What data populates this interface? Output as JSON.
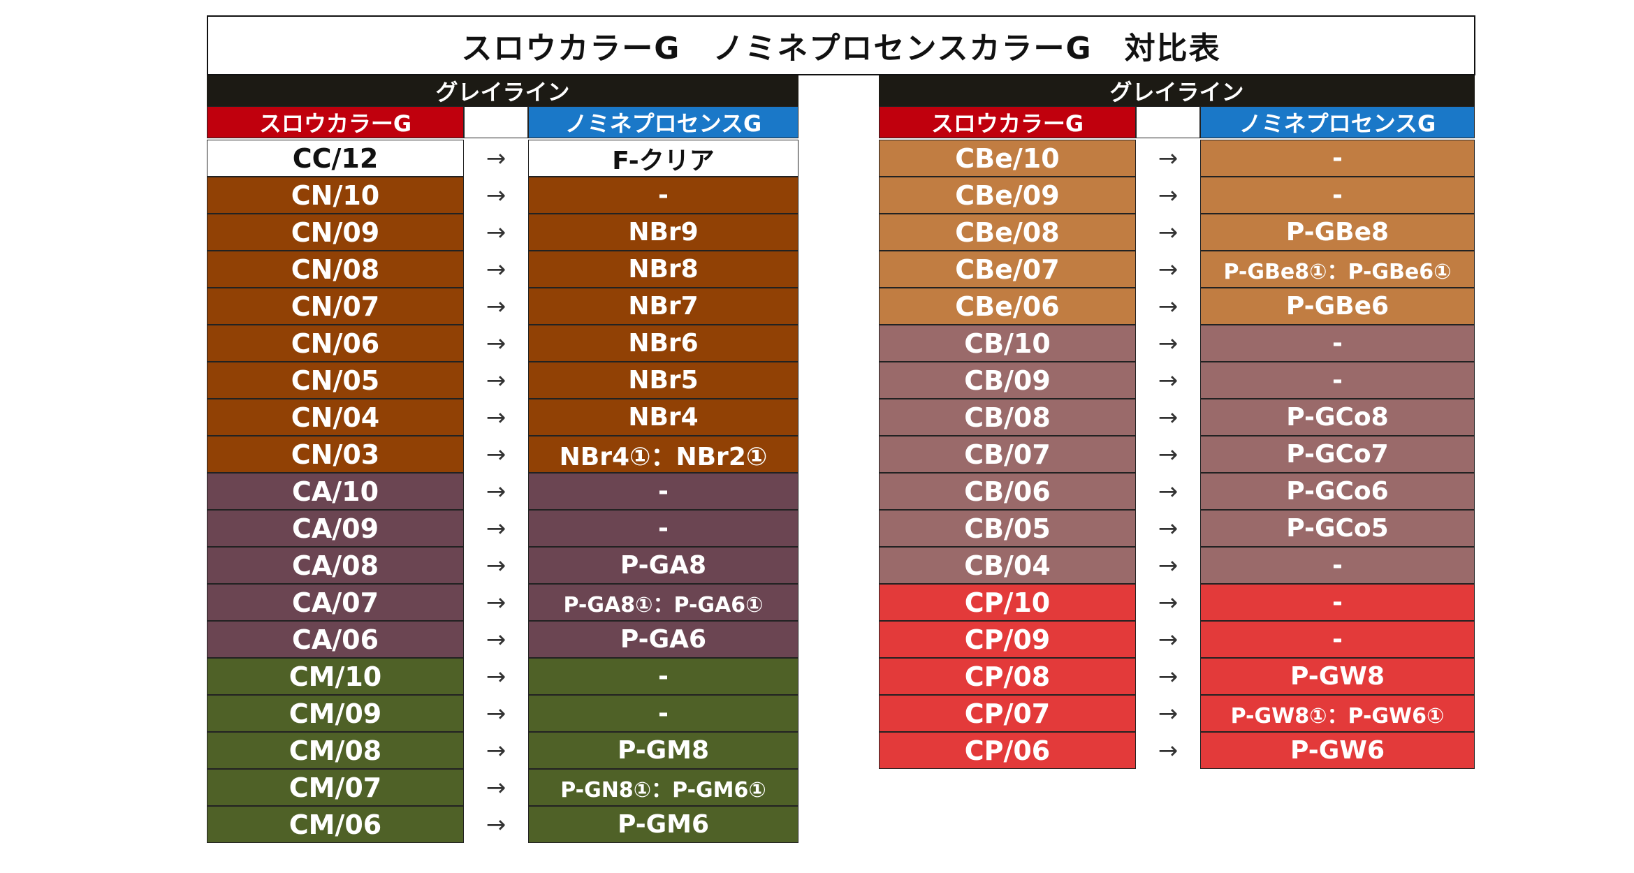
{
  "title": "スロウカラーG　ノミネプロセンスカラーG　対比表",
  "arrow": "→",
  "left": {
    "group_label": "グレイライン",
    "col_slow": "スロウカラーG",
    "col_nomi": "ノミネプロセンスG",
    "rows": [
      {
        "slow": "CC/12",
        "nomi": "F-クリア",
        "bg": "#ffffff",
        "fg": "#111111"
      },
      {
        "slow": "CN/10",
        "nomi": "-",
        "bg": "#914105",
        "fg": "#ffffff"
      },
      {
        "slow": "CN/09",
        "nomi": "NBr9",
        "bg": "#914105",
        "fg": "#ffffff"
      },
      {
        "slow": "CN/08",
        "nomi": "NBr8",
        "bg": "#914105",
        "fg": "#ffffff"
      },
      {
        "slow": "CN/07",
        "nomi": "NBr7",
        "bg": "#914105",
        "fg": "#ffffff"
      },
      {
        "slow": "CN/06",
        "nomi": "NBr6",
        "bg": "#914105",
        "fg": "#ffffff"
      },
      {
        "slow": "CN/05",
        "nomi": "NBr5",
        "bg": "#914105",
        "fg": "#ffffff"
      },
      {
        "slow": "CN/04",
        "nomi": "NBr4",
        "bg": "#914105",
        "fg": "#ffffff"
      },
      {
        "slow": "CN/03",
        "nomi": "NBr4①：NBr2①",
        "bg": "#914105",
        "fg": "#ffffff"
      },
      {
        "slow": "CA/10",
        "nomi": "-",
        "bg": "#6b4552",
        "fg": "#ffffff"
      },
      {
        "slow": "CA/09",
        "nomi": "-",
        "bg": "#6b4552",
        "fg": "#ffffff"
      },
      {
        "slow": "CA/08",
        "nomi": "P-GA8",
        "bg": "#6b4552",
        "fg": "#ffffff"
      },
      {
        "slow": "CA/07",
        "nomi": "P-GA8①：P-GA6①",
        "bg": "#6b4552",
        "fg": "#ffffff"
      },
      {
        "slow": "CA/06",
        "nomi": "P-GA6",
        "bg": "#6b4552",
        "fg": "#ffffff"
      },
      {
        "slow": "CM/10",
        "nomi": "-",
        "bg": "#4f6127",
        "fg": "#ffffff"
      },
      {
        "slow": "CM/09",
        "nomi": "-",
        "bg": "#4f6127",
        "fg": "#ffffff"
      },
      {
        "slow": "CM/08",
        "nomi": "P-GM8",
        "bg": "#4f6127",
        "fg": "#ffffff"
      },
      {
        "slow": "CM/07",
        "nomi": "P-GN8①：P-GM6①",
        "bg": "#4f6127",
        "fg": "#ffffff"
      },
      {
        "slow": "CM/06",
        "nomi": "P-GM6",
        "bg": "#4f6127",
        "fg": "#ffffff"
      }
    ]
  },
  "right": {
    "group_label": "グレイライン",
    "col_slow": "スロウカラーG",
    "col_nomi": "ノミネプロセンスG",
    "rows": [
      {
        "slow": "CBe/10",
        "nomi": "-",
        "bg": "#c17d42",
        "fg": "#ffffff"
      },
      {
        "slow": "CBe/09",
        "nomi": "-",
        "bg": "#c17d42",
        "fg": "#ffffff"
      },
      {
        "slow": "CBe/08",
        "nomi": "P-GBe8",
        "bg": "#c17d42",
        "fg": "#ffffff"
      },
      {
        "slow": "CBe/07",
        "nomi": "P-GBe8①：P-GBe6①",
        "bg": "#c17d42",
        "fg": "#ffffff"
      },
      {
        "slow": "CBe/06",
        "nomi": "P-GBe6",
        "bg": "#c17d42",
        "fg": "#ffffff"
      },
      {
        "slow": "CB/10",
        "nomi": "-",
        "bg": "#9a6a6a",
        "fg": "#ffffff"
      },
      {
        "slow": "CB/09",
        "nomi": "-",
        "bg": "#9a6a6a",
        "fg": "#ffffff"
      },
      {
        "slow": "CB/08",
        "nomi": "P-GCo8",
        "bg": "#9a6a6a",
        "fg": "#ffffff"
      },
      {
        "slow": "CB/07",
        "nomi": "P-GCo7",
        "bg": "#9a6a6a",
        "fg": "#ffffff"
      },
      {
        "slow": "CB/06",
        "nomi": "P-GCo6",
        "bg": "#9a6a6a",
        "fg": "#ffffff"
      },
      {
        "slow": "CB/05",
        "nomi": "P-GCo5",
        "bg": "#9a6a6a",
        "fg": "#ffffff"
      },
      {
        "slow": "CB/04",
        "nomi": "-",
        "bg": "#9a6a6a",
        "fg": "#ffffff"
      },
      {
        "slow": "CP/10",
        "nomi": "-",
        "bg": "#e33a3a",
        "fg": "#ffffff"
      },
      {
        "slow": "CP/09",
        "nomi": "-",
        "bg": "#e33a3a",
        "fg": "#ffffff"
      },
      {
        "slow": "CP/08",
        "nomi": "P-GW8",
        "bg": "#e33a3a",
        "fg": "#ffffff"
      },
      {
        "slow": "CP/07",
        "nomi": "P-GW8①：P-GW6①",
        "bg": "#e33a3a",
        "fg": "#ffffff"
      },
      {
        "slow": "CP/06",
        "nomi": "P-GW6",
        "bg": "#e33a3a",
        "fg": "#ffffff"
      }
    ]
  }
}
